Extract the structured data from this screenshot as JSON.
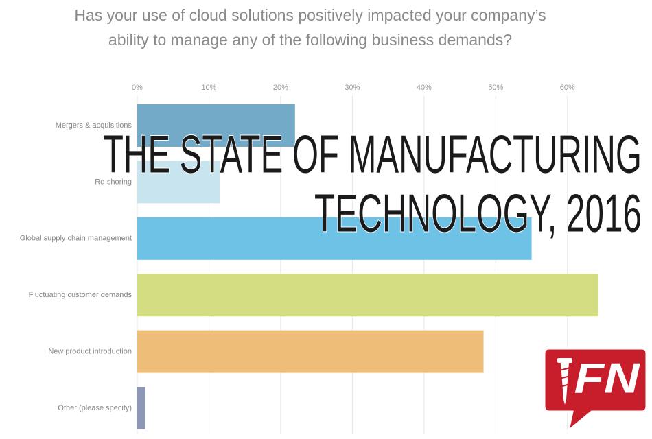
{
  "chart_data": {
    "type": "barh",
    "title": [
      "Has your use of cloud solutions positively impacted your company’s",
      "ability to manage any of the following business demands?"
    ],
    "categories": [
      "Mergers & acquisitions",
      "Re-shoring",
      "Global supply chain management",
      "Fluctuating customer demands",
      "New product introduction",
      "Other (please specify)"
    ],
    "values": [
      22,
      11.5,
      55,
      64.3,
      48.3,
      1.1
    ],
    "colors": [
      "#73aac8",
      "#c8e4ee",
      "#6ec2e6",
      "#d5dd82",
      "#eebd78",
      "#8d97b6"
    ],
    "xlim": [
      0,
      65
    ],
    "xticks": [
      {
        "value": 0,
        "label": "0%"
      },
      {
        "value": 10,
        "label": "10%"
      },
      {
        "value": 20,
        "label": "20%"
      },
      {
        "value": 30,
        "label": "30%"
      },
      {
        "value": 40,
        "label": "40%"
      },
      {
        "value": 50,
        "label": "50%"
      },
      {
        "value": 60,
        "label": "60%"
      }
    ],
    "grid": true,
    "banner": [
      "THE STATE OF MANUFACTURING",
      "TECHNOLOGY, 2016"
    ],
    "logo_text": "FN"
  }
}
